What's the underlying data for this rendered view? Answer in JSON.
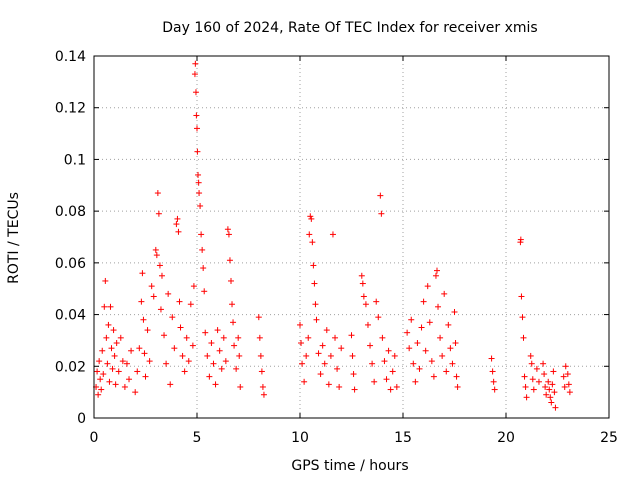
{
  "chart_data": {
    "type": "scatter",
    "title": "Day 160 of 2024, Rate Of TEC Index for receiver xmis",
    "xlabel": "GPS time / hours",
    "ylabel": "ROTI / TECUs",
    "xlim": [
      0,
      25
    ],
    "ylim": [
      0,
      0.14
    ],
    "x_ticks": [
      0,
      5,
      10,
      15,
      20,
      25
    ],
    "x_tick_labels": [
      "0",
      "5",
      "10",
      "15",
      "20",
      "25"
    ],
    "y_ticks": [
      0,
      0.02,
      0.04,
      0.06,
      0.08,
      0.1,
      0.12,
      0.14
    ],
    "y_tick_labels": [
      "0",
      "0.02",
      "0.04",
      "0.06",
      "0.08",
      "0.1",
      "0.12",
      "0.14"
    ],
    "grid": true,
    "marker": "+",
    "marker_color": "#ff0000",
    "series": [
      {
        "name": "ROTI",
        "points": [
          [
            0.1,
            0.012
          ],
          [
            0.15,
            0.018
          ],
          [
            0.2,
            0.009
          ],
          [
            0.25,
            0.022
          ],
          [
            0.3,
            0.015
          ],
          [
            0.35,
            0.011
          ],
          [
            0.4,
            0.026
          ],
          [
            0.45,
            0.017
          ],
          [
            0.5,
            0.043
          ],
          [
            0.55,
            0.053
          ],
          [
            0.6,
            0.031
          ],
          [
            0.65,
            0.021
          ],
          [
            0.7,
            0.036
          ],
          [
            0.75,
            0.014
          ],
          [
            0.8,
            0.043
          ],
          [
            0.85,
            0.027
          ],
          [
            0.9,
            0.019
          ],
          [
            0.95,
            0.034
          ],
          [
            1.0,
            0.024
          ],
          [
            1.05,
            0.013
          ],
          [
            1.1,
            0.029
          ],
          [
            1.2,
            0.018
          ],
          [
            1.3,
            0.031
          ],
          [
            1.4,
            0.022
          ],
          [
            1.5,
            0.012
          ],
          [
            1.6,
            0.021
          ],
          [
            1.7,
            0.015
          ],
          [
            1.8,
            0.026
          ],
          [
            2.0,
            0.01
          ],
          [
            2.1,
            0.018
          ],
          [
            2.2,
            0.027
          ],
          [
            2.3,
            0.045
          ],
          [
            2.35,
            0.056
          ],
          [
            2.4,
            0.038
          ],
          [
            2.45,
            0.025
          ],
          [
            2.5,
            0.016
          ],
          [
            2.6,
            0.034
          ],
          [
            2.7,
            0.022
          ],
          [
            2.8,
            0.051
          ],
          [
            2.9,
            0.047
          ],
          [
            3.0,
            0.065
          ],
          [
            3.05,
            0.063
          ],
          [
            3.1,
            0.087
          ],
          [
            3.15,
            0.079
          ],
          [
            3.2,
            0.059
          ],
          [
            3.25,
            0.042
          ],
          [
            3.3,
            0.055
          ],
          [
            3.4,
            0.032
          ],
          [
            3.5,
            0.021
          ],
          [
            3.6,
            0.048
          ],
          [
            3.7,
            0.013
          ],
          [
            3.8,
            0.039
          ],
          [
            3.9,
            0.027
          ],
          [
            4.0,
            0.075
          ],
          [
            4.05,
            0.077
          ],
          [
            4.1,
            0.072
          ],
          [
            4.15,
            0.045
          ],
          [
            4.2,
            0.035
          ],
          [
            4.3,
            0.024
          ],
          [
            4.4,
            0.018
          ],
          [
            4.5,
            0.031
          ],
          [
            4.6,
            0.022
          ],
          [
            4.7,
            0.044
          ],
          [
            4.8,
            0.028
          ],
          [
            4.85,
            0.051
          ],
          [
            4.9,
            0.133
          ],
          [
            4.92,
            0.137
          ],
          [
            4.95,
            0.126
          ],
          [
            4.97,
            0.117
          ],
          [
            5.0,
            0.112
          ],
          [
            5.02,
            0.103
          ],
          [
            5.05,
            0.094
          ],
          [
            5.08,
            0.091
          ],
          [
            5.1,
            0.087
          ],
          [
            5.15,
            0.082
          ],
          [
            5.2,
            0.071
          ],
          [
            5.25,
            0.065
          ],
          [
            5.3,
            0.058
          ],
          [
            5.35,
            0.049
          ],
          [
            5.4,
            0.033
          ],
          [
            5.5,
            0.024
          ],
          [
            5.6,
            0.016
          ],
          [
            5.7,
            0.029
          ],
          [
            5.8,
            0.021
          ],
          [
            5.9,
            0.013
          ],
          [
            6.0,
            0.034
          ],
          [
            6.1,
            0.026
          ],
          [
            6.2,
            0.019
          ],
          [
            6.3,
            0.031
          ],
          [
            6.4,
            0.022
          ],
          [
            6.5,
            0.073
          ],
          [
            6.55,
            0.071
          ],
          [
            6.6,
            0.061
          ],
          [
            6.65,
            0.053
          ],
          [
            6.7,
            0.044
          ],
          [
            6.75,
            0.037
          ],
          [
            6.8,
            0.028
          ],
          [
            6.9,
            0.019
          ],
          [
            7.0,
            0.031
          ],
          [
            7.05,
            0.024
          ],
          [
            7.1,
            0.012
          ],
          [
            8.0,
            0.039
          ],
          [
            8.05,
            0.031
          ],
          [
            8.1,
            0.024
          ],
          [
            8.15,
            0.018
          ],
          [
            8.2,
            0.012
          ],
          [
            8.25,
            0.009
          ],
          [
            10.0,
            0.036
          ],
          [
            10.05,
            0.029
          ],
          [
            10.1,
            0.021
          ],
          [
            10.2,
            0.014
          ],
          [
            10.3,
            0.024
          ],
          [
            10.4,
            0.031
          ],
          [
            10.45,
            0.071
          ],
          [
            10.5,
            0.078
          ],
          [
            10.55,
            0.077
          ],
          [
            10.6,
            0.068
          ],
          [
            10.65,
            0.059
          ],
          [
            10.7,
            0.052
          ],
          [
            10.75,
            0.044
          ],
          [
            10.8,
            0.038
          ],
          [
            10.9,
            0.025
          ],
          [
            11.0,
            0.017
          ],
          [
            11.1,
            0.028
          ],
          [
            11.2,
            0.021
          ],
          [
            11.3,
            0.034
          ],
          [
            11.4,
            0.013
          ],
          [
            11.5,
            0.024
          ],
          [
            11.6,
            0.071
          ],
          [
            11.7,
            0.031
          ],
          [
            11.8,
            0.019
          ],
          [
            11.9,
            0.012
          ],
          [
            12.0,
            0.027
          ],
          [
            12.5,
            0.032
          ],
          [
            12.55,
            0.024
          ],
          [
            12.6,
            0.017
          ],
          [
            12.65,
            0.011
          ],
          [
            13.0,
            0.055
          ],
          [
            13.05,
            0.052
          ],
          [
            13.1,
            0.047
          ],
          [
            13.2,
            0.044
          ],
          [
            13.3,
            0.036
          ],
          [
            13.4,
            0.028
          ],
          [
            13.5,
            0.021
          ],
          [
            13.6,
            0.014
          ],
          [
            13.7,
            0.045
          ],
          [
            13.8,
            0.039
          ],
          [
            13.9,
            0.086
          ],
          [
            13.95,
            0.079
          ],
          [
            14.0,
            0.031
          ],
          [
            14.1,
            0.022
          ],
          [
            14.2,
            0.015
          ],
          [
            14.3,
            0.026
          ],
          [
            14.4,
            0.011
          ],
          [
            14.5,
            0.018
          ],
          [
            14.6,
            0.024
          ],
          [
            14.7,
            0.012
          ],
          [
            15.2,
            0.033
          ],
          [
            15.3,
            0.027
          ],
          [
            15.4,
            0.038
          ],
          [
            15.5,
            0.021
          ],
          [
            15.6,
            0.014
          ],
          [
            15.7,
            0.029
          ],
          [
            15.8,
            0.019
          ],
          [
            15.9,
            0.035
          ],
          [
            16.0,
            0.045
          ],
          [
            16.1,
            0.026
          ],
          [
            16.2,
            0.051
          ],
          [
            16.3,
            0.037
          ],
          [
            16.4,
            0.022
          ],
          [
            16.5,
            0.016
          ],
          [
            16.6,
            0.055
          ],
          [
            16.65,
            0.057
          ],
          [
            16.7,
            0.043
          ],
          [
            16.8,
            0.031
          ],
          [
            16.9,
            0.024
          ],
          [
            17.0,
            0.048
          ],
          [
            17.1,
            0.018
          ],
          [
            17.2,
            0.036
          ],
          [
            17.3,
            0.027
          ],
          [
            17.4,
            0.021
          ],
          [
            17.5,
            0.041
          ],
          [
            17.55,
            0.029
          ],
          [
            17.6,
            0.016
          ],
          [
            17.65,
            0.012
          ],
          [
            19.3,
            0.023
          ],
          [
            19.35,
            0.018
          ],
          [
            19.4,
            0.014
          ],
          [
            19.45,
            0.011
          ],
          [
            20.7,
            0.068
          ],
          [
            20.72,
            0.069
          ],
          [
            20.75,
            0.047
          ],
          [
            20.8,
            0.039
          ],
          [
            20.85,
            0.031
          ],
          [
            20.9,
            0.016
          ],
          [
            20.95,
            0.012
          ],
          [
            21.0,
            0.008
          ],
          [
            21.2,
            0.024
          ],
          [
            21.25,
            0.021
          ],
          [
            21.3,
            0.015
          ],
          [
            21.35,
            0.011
          ],
          [
            21.5,
            0.019
          ],
          [
            21.6,
            0.014
          ],
          [
            21.8,
            0.021
          ],
          [
            21.85,
            0.017
          ],
          [
            21.9,
            0.012
          ],
          [
            21.95,
            0.009
          ],
          [
            22.05,
            0.014
          ],
          [
            22.1,
            0.011
          ],
          [
            22.15,
            0.008
          ],
          [
            22.2,
            0.006
          ],
          [
            22.25,
            0.013
          ],
          [
            22.3,
            0.018
          ],
          [
            22.35,
            0.01
          ],
          [
            22.4,
            0.004
          ],
          [
            22.8,
            0.016
          ],
          [
            22.85,
            0.012
          ],
          [
            22.9,
            0.02
          ],
          [
            23.0,
            0.017
          ],
          [
            23.05,
            0.013
          ],
          [
            23.1,
            0.01
          ]
        ]
      }
    ]
  }
}
